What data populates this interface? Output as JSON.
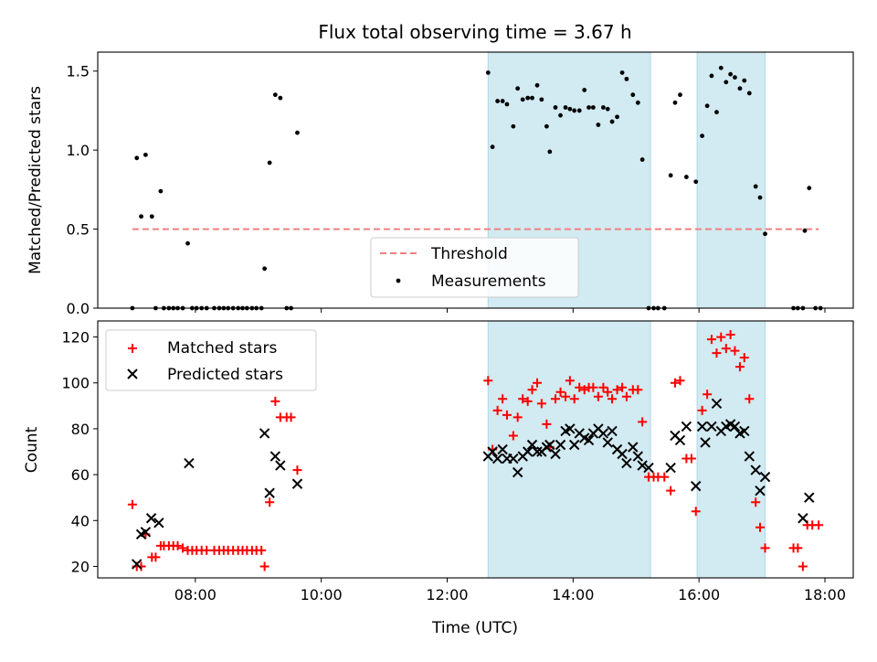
{
  "chart_data": [
    {
      "type": "scatter",
      "title": "Flux total observing time = 3.67 h",
      "xlabel": "",
      "ylabel": "Matched/Predicted stars",
      "xlim": [
        6.45,
        18.45
      ],
      "ylim": [
        0,
        1.62
      ],
      "yticks": [
        0,
        0.5,
        1.0,
        1.5
      ],
      "ytick_labels": [
        "0.0",
        "0.5",
        "1.0",
        "1.5"
      ],
      "xticks": [
        8,
        10,
        12,
        14,
        16,
        18
      ],
      "highlight_spans": [
        [
          12.65,
          15.23
        ],
        [
          15.97,
          17.05
        ]
      ],
      "highlight_color": "#add8e6",
      "threshold": {
        "name": "Threshold",
        "value": 0.5,
        "x_range": [
          7.0,
          17.9
        ],
        "color": "#f08080"
      },
      "legend": {
        "location": "lower center",
        "entries": [
          "Threshold",
          "Measurements"
        ]
      },
      "series": [
        {
          "name": "Measurements",
          "color": "#000000",
          "points": [
            [
              7.0,
              0
            ],
            [
              7.07,
              0.95
            ],
            [
              7.14,
              0.58
            ],
            [
              7.21,
              0.97
            ],
            [
              7.31,
              0.58
            ],
            [
              7.37,
              0
            ],
            [
              7.45,
              0.74
            ],
            [
              7.5,
              0
            ],
            [
              7.58,
              0
            ],
            [
              7.65,
              0
            ],
            [
              7.72,
              0
            ],
            [
              7.8,
              0
            ],
            [
              7.88,
              0.41
            ],
            [
              7.95,
              0
            ],
            [
              8.02,
              0
            ],
            [
              8.1,
              0
            ],
            [
              8.18,
              0
            ],
            [
              8.3,
              0
            ],
            [
              8.38,
              0
            ],
            [
              8.45,
              0
            ],
            [
              8.52,
              0
            ],
            [
              8.6,
              0
            ],
            [
              8.68,
              0
            ],
            [
              8.75,
              0
            ],
            [
              8.82,
              0
            ],
            [
              8.9,
              0
            ],
            [
              8.97,
              0
            ],
            [
              9.05,
              0
            ],
            [
              9.1,
              0.25
            ],
            [
              9.18,
              0.92
            ],
            [
              9.27,
              1.35
            ],
            [
              9.35,
              1.33
            ],
            [
              9.45,
              0
            ],
            [
              9.52,
              0
            ],
            [
              9.62,
              1.11
            ],
            [
              12.65,
              1.49
            ],
            [
              12.72,
              1.02
            ],
            [
              12.8,
              1.31
            ],
            [
              12.88,
              1.31
            ],
            [
              12.95,
              1.29
            ],
            [
              13.05,
              1.15
            ],
            [
              13.12,
              1.39
            ],
            [
              13.2,
              1.32
            ],
            [
              13.28,
              1.33
            ],
            [
              13.35,
              1.33
            ],
            [
              13.43,
              1.41
            ],
            [
              13.5,
              1.32
            ],
            [
              13.58,
              1.15
            ],
            [
              13.63,
              0.99
            ],
            [
              13.72,
              1.27
            ],
            [
              13.8,
              1.22
            ],
            [
              13.88,
              1.27
            ],
            [
              13.95,
              1.26
            ],
            [
              14.02,
              1.25
            ],
            [
              14.1,
              1.25
            ],
            [
              14.18,
              1.38
            ],
            [
              14.25,
              1.27
            ],
            [
              14.32,
              1.27
            ],
            [
              14.4,
              1.16
            ],
            [
              14.48,
              1.27
            ],
            [
              14.55,
              1.26
            ],
            [
              14.62,
              1.18
            ],
            [
              14.7,
              1.21
            ],
            [
              14.78,
              1.49
            ],
            [
              14.85,
              1.45
            ],
            [
              14.95,
              1.35
            ],
            [
              15.03,
              1.3
            ],
            [
              15.1,
              0.94
            ],
            [
              15.2,
              0
            ],
            [
              15.28,
              0
            ],
            [
              15.35,
              0
            ],
            [
              15.45,
              0
            ],
            [
              15.55,
              0.84
            ],
            [
              15.62,
              1.3
            ],
            [
              15.7,
              1.35
            ],
            [
              15.8,
              0.83
            ],
            [
              15.95,
              0.8
            ],
            [
              16.05,
              1.09
            ],
            [
              16.13,
              1.28
            ],
            [
              16.2,
              1.47
            ],
            [
              16.28,
              1.24
            ],
            [
              16.35,
              1.52
            ],
            [
              16.43,
              1.43
            ],
            [
              16.5,
              1.48
            ],
            [
              16.57,
              1.46
            ],
            [
              16.65,
              1.39
            ],
            [
              16.72,
              1.44
            ],
            [
              16.8,
              1.36
            ],
            [
              16.9,
              0.77
            ],
            [
              16.97,
              0.7
            ],
            [
              17.05,
              0.47
            ],
            [
              17.5,
              0
            ],
            [
              17.57,
              0
            ],
            [
              17.65,
              0
            ],
            [
              17.68,
              0.49
            ],
            [
              17.75,
              0.76
            ],
            [
              17.85,
              0
            ],
            [
              17.93,
              0
            ]
          ]
        }
      ]
    },
    {
      "type": "scatter",
      "title": "",
      "xlabel": "Time (UTC)",
      "ylabel": "Count",
      "xlim": [
        6.45,
        18.45
      ],
      "ylim": [
        15,
        127
      ],
      "yticks": [
        20,
        40,
        60,
        80,
        100,
        120
      ],
      "xticks": [
        8,
        10,
        12,
        14,
        16,
        18
      ],
      "xtick_labels": [
        "08:00",
        "10:00",
        "12:00",
        "14:00",
        "16:00",
        "18:00"
      ],
      "highlight_spans": [
        [
          12.65,
          15.23
        ],
        [
          15.97,
          17.05
        ]
      ],
      "highlight_color": "#add8e6",
      "legend": {
        "location": "upper left",
        "entries": [
          "Matched stars",
          "Predicted stars"
        ]
      },
      "series": [
        {
          "name": "Matched stars",
          "color": "#ff0000",
          "marker": "plus",
          "points": [
            [
              7.0,
              47
            ],
            [
              7.07,
              20
            ],
            [
              7.14,
              20
            ],
            [
              7.21,
              34
            ],
            [
              7.31,
              24
            ],
            [
              7.37,
              24
            ],
            [
              7.45,
              29
            ],
            [
              7.5,
              29
            ],
            [
              7.58,
              29
            ],
            [
              7.65,
              29
            ],
            [
              7.72,
              29
            ],
            [
              7.8,
              28
            ],
            [
              7.88,
              27
            ],
            [
              7.95,
              27
            ],
            [
              8.02,
              27
            ],
            [
              8.1,
              27
            ],
            [
              8.18,
              27
            ],
            [
              8.3,
              27
            ],
            [
              8.38,
              27
            ],
            [
              8.45,
              27
            ],
            [
              8.52,
              27
            ],
            [
              8.6,
              27
            ],
            [
              8.68,
              27
            ],
            [
              8.75,
              27
            ],
            [
              8.82,
              27
            ],
            [
              8.9,
              27
            ],
            [
              8.97,
              27
            ],
            [
              9.05,
              27
            ],
            [
              9.1,
              20
            ],
            [
              9.18,
              48
            ],
            [
              9.27,
              92
            ],
            [
              9.35,
              85
            ],
            [
              9.45,
              85
            ],
            [
              9.52,
              85
            ],
            [
              9.62,
              62
            ],
            [
              12.65,
              101
            ],
            [
              12.72,
              71
            ],
            [
              12.8,
              88
            ],
            [
              12.88,
              93
            ],
            [
              12.95,
              86
            ],
            [
              13.05,
              77
            ],
            [
              13.12,
              85
            ],
            [
              13.2,
              93
            ],
            [
              13.28,
              92
            ],
            [
              13.35,
              97
            ],
            [
              13.43,
              100
            ],
            [
              13.5,
              91
            ],
            [
              13.58,
              82
            ],
            [
              13.63,
              72
            ],
            [
              13.72,
              93
            ],
            [
              13.8,
              96
            ],
            [
              13.88,
              94
            ],
            [
              13.95,
              101
            ],
            [
              14.02,
              93
            ],
            [
              14.1,
              98
            ],
            [
              14.18,
              97
            ],
            [
              14.25,
              98
            ],
            [
              14.32,
              98
            ],
            [
              14.4,
              94
            ],
            [
              14.48,
              98
            ],
            [
              14.55,
              96
            ],
            [
              14.62,
              93
            ],
            [
              14.7,
              97
            ],
            [
              14.78,
              98
            ],
            [
              14.85,
              94
            ],
            [
              14.95,
              97
            ],
            [
              15.03,
              97
            ],
            [
              15.1,
              83
            ],
            [
              15.2,
              59
            ],
            [
              15.28,
              59
            ],
            [
              15.35,
              59
            ],
            [
              15.45,
              59
            ],
            [
              15.55,
              53
            ],
            [
              15.62,
              100
            ],
            [
              15.7,
              101
            ],
            [
              15.8,
              67
            ],
            [
              15.88,
              67
            ],
            [
              15.95,
              44
            ],
            [
              16.05,
              88
            ],
            [
              16.13,
              95
            ],
            [
              16.2,
              119
            ],
            [
              16.28,
              113
            ],
            [
              16.35,
              120
            ],
            [
              16.43,
              115
            ],
            [
              16.5,
              121
            ],
            [
              16.57,
              114
            ],
            [
              16.65,
              107
            ],
            [
              16.72,
              111
            ],
            [
              16.8,
              93
            ],
            [
              16.9,
              48
            ],
            [
              16.97,
              37
            ],
            [
              17.05,
              28
            ],
            [
              17.5,
              28
            ],
            [
              17.57,
              28
            ],
            [
              17.65,
              20
            ],
            [
              17.72,
              38
            ],
            [
              17.8,
              38
            ],
            [
              17.9,
              38
            ]
          ]
        },
        {
          "name": "Predicted stars",
          "color": "#000000",
          "marker": "x",
          "points": [
            [
              7.07,
              21
            ],
            [
              7.14,
              34
            ],
            [
              7.21,
              35
            ],
            [
              7.3,
              41
            ],
            [
              7.42,
              39
            ],
            [
              7.9,
              65
            ],
            [
              9.1,
              78
            ],
            [
              9.18,
              52
            ],
            [
              9.27,
              68
            ],
            [
              9.35,
              64
            ],
            [
              9.62,
              56
            ],
            [
              12.65,
              68
            ],
            [
              12.72,
              70
            ],
            [
              12.8,
              67
            ],
            [
              12.88,
              71
            ],
            [
              12.95,
              67
            ],
            [
              13.05,
              67
            ],
            [
              13.12,
              61
            ],
            [
              13.2,
              68
            ],
            [
              13.28,
              70
            ],
            [
              13.35,
              73
            ],
            [
              13.43,
              70
            ],
            [
              13.5,
              70
            ],
            [
              13.58,
              72
            ],
            [
              13.63,
              73
            ],
            [
              13.72,
              69
            ],
            [
              13.8,
              73
            ],
            [
              13.88,
              79
            ],
            [
              13.95,
              80
            ],
            [
              14.02,
              73
            ],
            [
              14.1,
              78
            ],
            [
              14.18,
              76
            ],
            [
              14.25,
              75
            ],
            [
              14.32,
              78
            ],
            [
              14.4,
              80
            ],
            [
              14.48,
              78
            ],
            [
              14.55,
              74
            ],
            [
              14.62,
              79
            ],
            [
              14.7,
              71
            ],
            [
              14.78,
              69
            ],
            [
              14.85,
              65
            ],
            [
              14.95,
              72
            ],
            [
              15.03,
              68
            ],
            [
              15.1,
              64
            ],
            [
              15.2,
              63
            ],
            [
              15.55,
              63
            ],
            [
              15.62,
              77
            ],
            [
              15.7,
              75
            ],
            [
              15.8,
              81
            ],
            [
              15.95,
              55
            ],
            [
              16.05,
              81
            ],
            [
              16.1,
              74
            ],
            [
              16.2,
              81
            ],
            [
              16.28,
              91
            ],
            [
              16.35,
              79
            ],
            [
              16.43,
              81
            ],
            [
              16.5,
              82
            ],
            [
              16.57,
              81
            ],
            [
              16.65,
              78
            ],
            [
              16.72,
              79
            ],
            [
              16.8,
              68
            ],
            [
              16.9,
              62
            ],
            [
              16.97,
              53
            ],
            [
              17.05,
              59
            ],
            [
              17.65,
              41
            ],
            [
              17.75,
              50
            ]
          ]
        }
      ]
    }
  ]
}
